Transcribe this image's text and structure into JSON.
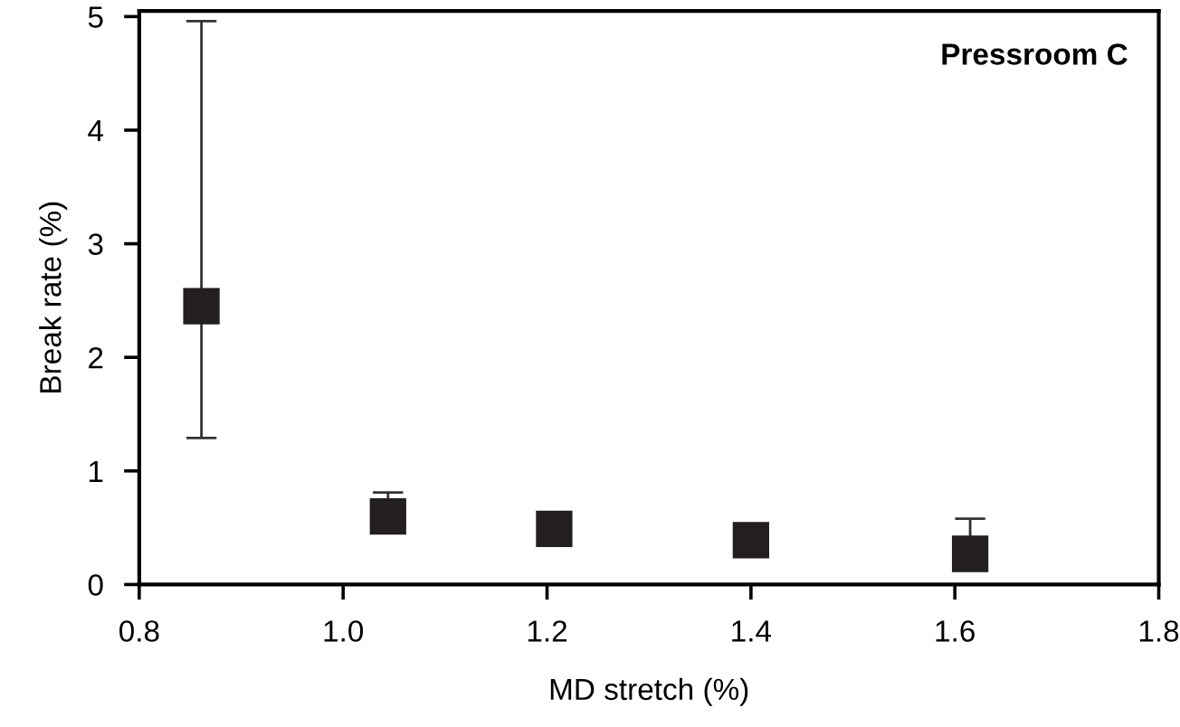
{
  "chart_data": {
    "type": "scatter",
    "xlabel": "MD stretch (%)",
    "ylabel": "Break rate (%)",
    "annotations": [
      "Pressroom C"
    ],
    "x": [
      0.861,
      1.044,
      1.207,
      1.4,
      1.615
    ],
    "values": [
      2.45,
      0.6,
      0.49,
      0.39,
      0.27
    ],
    "errors": [
      [
        1.29,
        4.96
      ],
      [
        0.6,
        0.81
      ],
      null,
      null,
      [
        0.27,
        0.58
      ]
    ],
    "color": "#231f20",
    "marker": "square",
    "xlim": [
      0.8,
      1.8
    ],
    "xticks": [
      {
        "value": 0.8,
        "label": "0.8"
      },
      {
        "value": 1.0,
        "label": "1.0"
      },
      {
        "value": 1.2,
        "label": "1.2"
      },
      {
        "value": 1.4,
        "label": "1.4"
      },
      {
        "value": 1.6,
        "label": "1.6"
      },
      {
        "value": 1.8,
        "label": "1.8"
      }
    ],
    "ylim": [
      0,
      5.05
    ],
    "yticks": [
      0,
      1,
      2,
      3,
      4,
      5
    ],
    "grid": false
  }
}
